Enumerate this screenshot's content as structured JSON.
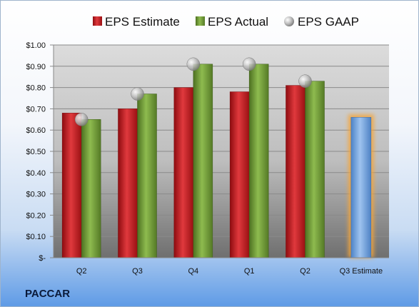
{
  "company": "PACCAR",
  "chart_data": {
    "type": "bar",
    "title": "",
    "xlabel": "",
    "ylabel": "",
    "categories": [
      "Q2",
      "Q3",
      "Q4",
      "Q1",
      "Q2",
      "Q3 Estimate"
    ],
    "series": [
      {
        "name": "EPS Estimate",
        "values": [
          0.68,
          0.7,
          0.8,
          0.78,
          0.81,
          null
        ]
      },
      {
        "name": "EPS Actual",
        "values": [
          0.65,
          0.77,
          0.91,
          0.91,
          0.83,
          null
        ]
      },
      {
        "name": "EPS GAAP",
        "values": [
          0.65,
          0.77,
          0.91,
          0.91,
          0.83,
          null
        ]
      }
    ],
    "forecast": {
      "category": "Q3 Estimate",
      "value": 0.66,
      "highlighted": true
    },
    "y_ticks": [
      "$-",
      "$0.10",
      "$0.20",
      "$0.30",
      "$0.40",
      "$0.50",
      "$0.60",
      "$0.70",
      "$0.80",
      "$0.90",
      "$1.00"
    ],
    "ylim": [
      0,
      1.0
    ],
    "grid": true,
    "legend": "top",
    "colors": {
      "estimate": "#c0171c",
      "actual": "#6f9a32",
      "gaap": "#b9b9b9",
      "forecast": "#6fa1df",
      "forecast_glow": "#f4a53a"
    }
  }
}
